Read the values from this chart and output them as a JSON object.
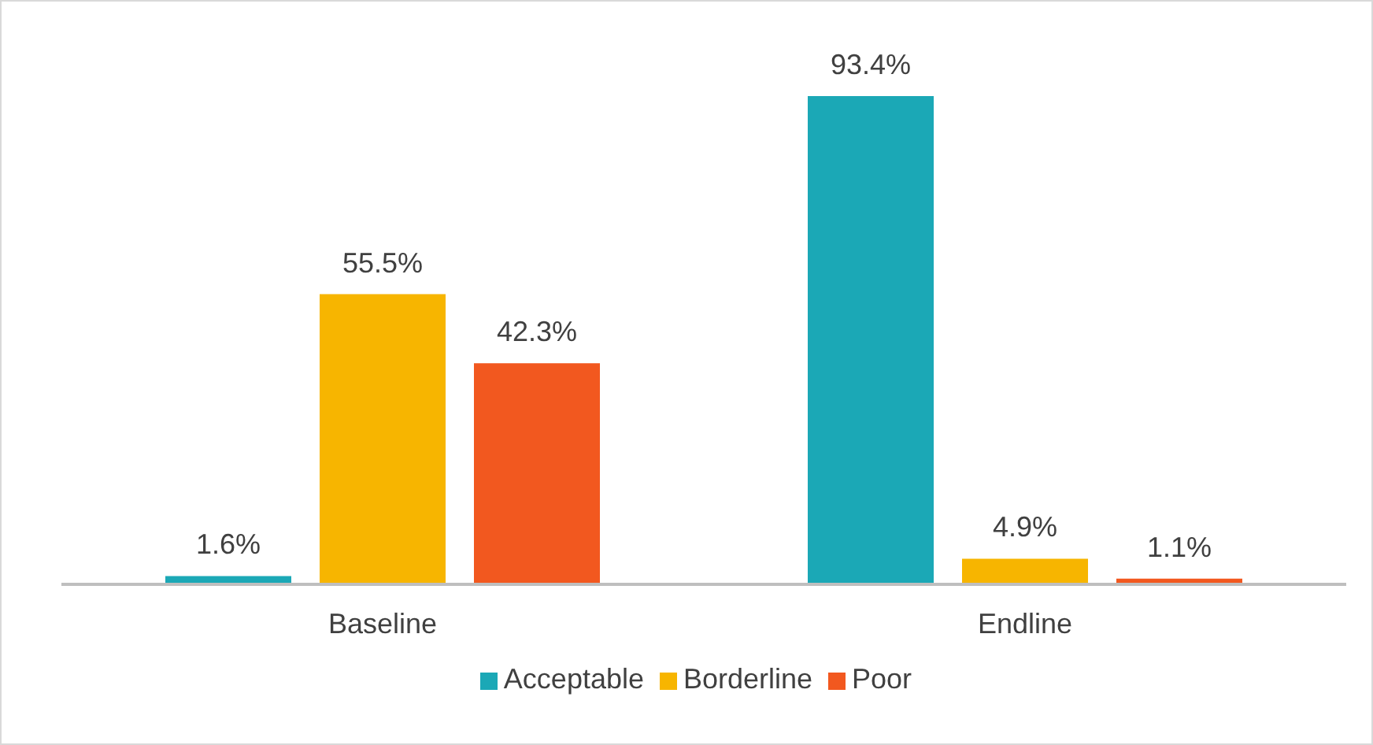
{
  "chart_data": {
    "type": "bar",
    "categories": [
      "Baseline",
      "Endline"
    ],
    "series": [
      {
        "name": "Acceptable",
        "color": "#1ba8b6",
        "values": [
          1.6,
          93.4
        ],
        "value_labels": [
          "1.6%",
          "93.4%"
        ]
      },
      {
        "name": "Borderline",
        "color": "#f7b500",
        "values": [
          55.5,
          4.9
        ],
        "value_labels": [
          "55.5%",
          "4.9%"
        ]
      },
      {
        "name": "Poor",
        "color": "#f2581f",
        "values": [
          42.3,
          1.1
        ],
        "value_labels": [
          "42.3%",
          "1.1%"
        ]
      }
    ],
    "legend": "bottom"
  }
}
